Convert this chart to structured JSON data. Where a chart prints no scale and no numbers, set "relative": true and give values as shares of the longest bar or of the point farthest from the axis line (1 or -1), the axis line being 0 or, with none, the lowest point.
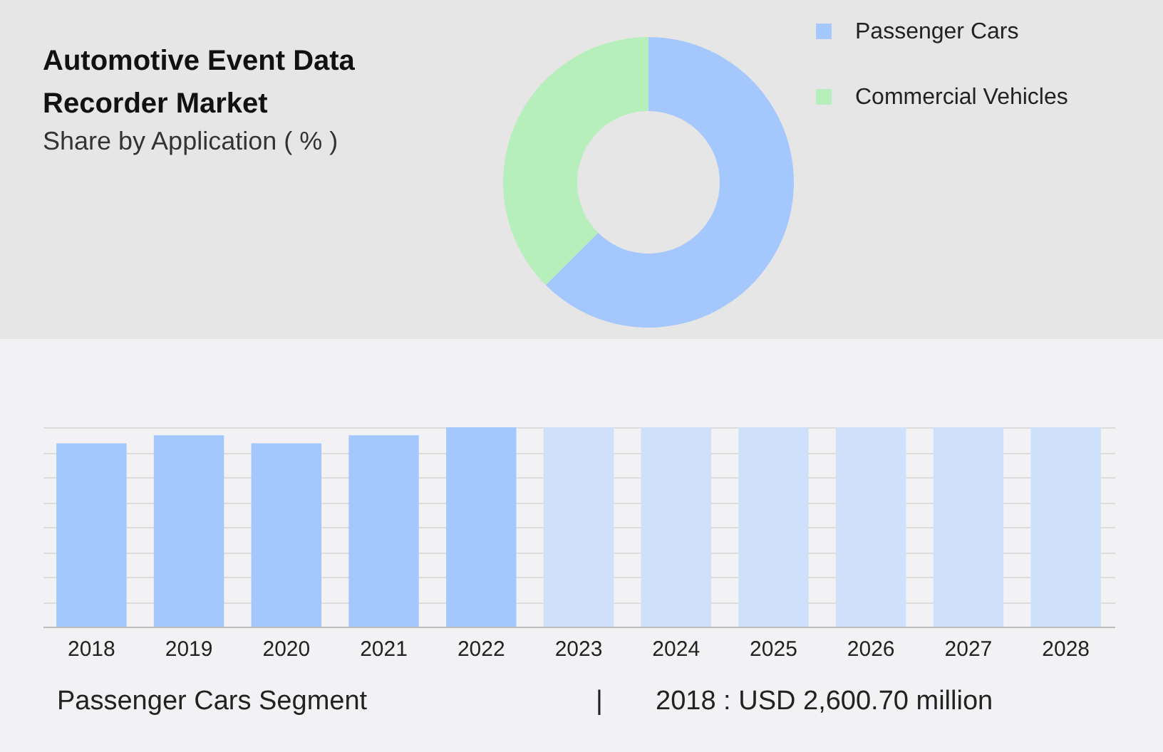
{
  "chart_data": [
    {
      "type": "donut",
      "title": "Automotive Event Data Recorder Market",
      "subtitle": "Share by Application ( % )",
      "categories": [
        "Passenger Cars",
        "Commercial Vehicles"
      ],
      "values": [
        62.5,
        37.5
      ],
      "colors": [
        "#a4c8fd",
        "#b6efbb"
      ],
      "legend": "top right"
    },
    {
      "type": "bar",
      "relative": true,
      "grid": "y",
      "categories": [
        "2018",
        "2019",
        "2020",
        "2021",
        "2022",
        "2023",
        "2024",
        "2025",
        "2026",
        "2027",
        "2028"
      ],
      "series": [
        {
          "color": "#a4c8fd",
          "values": [
            0.92,
            0.96,
            0.92,
            0.96,
            1,
            null,
            null,
            null,
            null,
            null,
            null
          ]
        },
        {
          "color": "#cfe0fb",
          "values": [
            null,
            null,
            null,
            null,
            null,
            1,
            1,
            1,
            1,
            1,
            1
          ]
        }
      ],
      "annotations": [
        "Passenger Cars Segment",
        "|",
        "2018 : USD 2,600.70 million"
      ]
    }
  ]
}
